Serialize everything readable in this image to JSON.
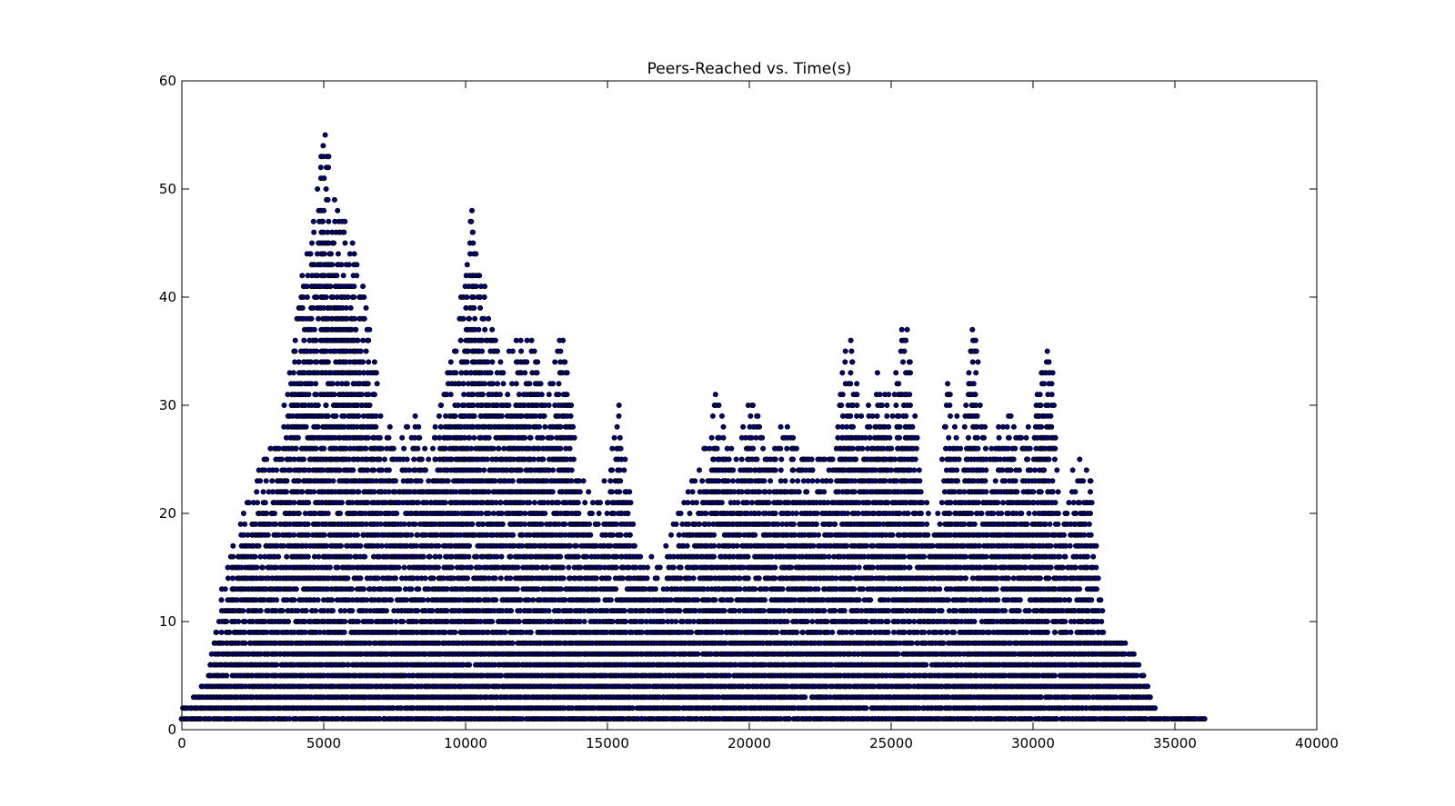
{
  "chart_data": {
    "type": "scatter",
    "title": "Peers-Reached vs. Time(s)",
    "xlabel": "",
    "ylabel": "",
    "xlim": [
      0,
      40000
    ],
    "ylim": [
      0,
      60
    ],
    "xticks": [
      0,
      5000,
      10000,
      15000,
      20000,
      25000,
      30000,
      35000,
      40000
    ],
    "yticks": [
      0,
      10,
      20,
      30,
      40,
      50,
      60
    ],
    "grid": false,
    "legend": "none",
    "marker_color": "#00007f",
    "marker_edge": "#000000",
    "series": [
      {
        "envelope": [
          [
            0,
            2
          ],
          [
            400,
            3
          ],
          [
            900,
            5
          ],
          [
            1400,
            13
          ],
          [
            2000,
            19
          ],
          [
            2800,
            25
          ],
          [
            3500,
            27
          ],
          [
            4000,
            38
          ],
          [
            4600,
            47
          ],
          [
            5050,
            56
          ],
          [
            5500,
            48
          ],
          [
            6000,
            46
          ],
          [
            6600,
            38
          ],
          [
            7100,
            29
          ],
          [
            7700,
            27
          ],
          [
            8200,
            30
          ],
          [
            8700,
            25
          ],
          [
            9300,
            33
          ],
          [
            9700,
            36
          ],
          [
            10200,
            49
          ],
          [
            10700,
            40
          ],
          [
            11300,
            34
          ],
          [
            12200,
            38
          ],
          [
            12800,
            31
          ],
          [
            13400,
            37
          ],
          [
            14000,
            24
          ],
          [
            14700,
            21
          ],
          [
            15400,
            30
          ],
          [
            16000,
            18
          ],
          [
            16800,
            15
          ],
          [
            17500,
            20
          ],
          [
            18300,
            25
          ],
          [
            18900,
            32
          ],
          [
            19500,
            25
          ],
          [
            20100,
            32
          ],
          [
            20700,
            25
          ],
          [
            21200,
            29
          ],
          [
            21800,
            26
          ],
          [
            22400,
            25
          ],
          [
            23000,
            26
          ],
          [
            23500,
            38
          ],
          [
            24000,
            28
          ],
          [
            24600,
            34
          ],
          [
            25100,
            31
          ],
          [
            25500,
            39
          ],
          [
            26000,
            26
          ],
          [
            26600,
            18
          ],
          [
            27000,
            33
          ],
          [
            27500,
            27
          ],
          [
            27900,
            39
          ],
          [
            28400,
            25
          ],
          [
            29000,
            30
          ],
          [
            29600,
            27
          ],
          [
            30100,
            31
          ],
          [
            30600,
            36
          ],
          [
            31000,
            19
          ],
          [
            31600,
            26
          ],
          [
            32100,
            23
          ],
          [
            32500,
            9
          ],
          [
            33300,
            8
          ],
          [
            33800,
            6
          ],
          [
            34500,
            1
          ],
          [
            36100,
            1
          ]
        ]
      }
    ]
  }
}
